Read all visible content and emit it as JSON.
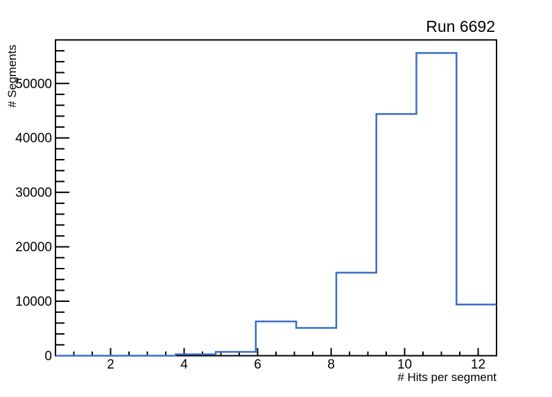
{
  "chart_data": {
    "type": "histogram",
    "title": "Run 6692",
    "xlabel": "# Hits per segment",
    "ylabel": "# Segments",
    "xlim": [
      0.5,
      12.5
    ],
    "ylim": [
      0,
      58000
    ],
    "bin_edges": [
      0.5,
      1.59,
      2.68,
      3.77,
      4.86,
      5.95,
      7.05,
      8.14,
      9.23,
      10.32,
      11.41,
      12.5
    ],
    "counts": [
      0,
      0,
      0,
      250,
      700,
      6300,
      5100,
      15250,
      44400,
      55600,
      9400
    ],
    "x_major_ticks": [
      2,
      4,
      6,
      8,
      10,
      12
    ],
    "x_minor_tick_step": 0.5,
    "y_major_ticks": [
      0,
      10000,
      20000,
      30000,
      40000,
      50000
    ],
    "y_major_tick_labels": [
      "0",
      "10000",
      "20000",
      "30000",
      "40000",
      "50000"
    ],
    "y_minor_tick_step": 2000,
    "grid": false,
    "legend_position": "none",
    "line_color": "#3a6cc8",
    "frame_color": "#000000",
    "text_color": "#000000"
  }
}
